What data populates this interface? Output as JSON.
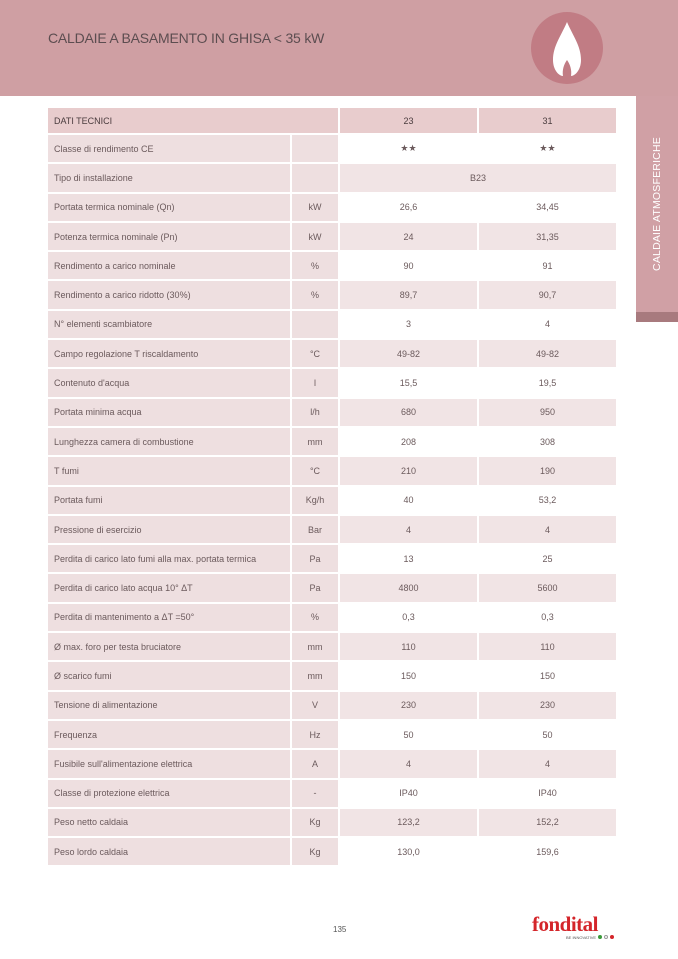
{
  "header": {
    "title": "CALDAIE A BASAMENTO IN GHISA < 35 kW",
    "icon": "flame-icon"
  },
  "sidetab": {
    "label": "CALDAIE ATMOSFERICHE"
  },
  "table": {
    "header": {
      "label": "DATI TECNICI",
      "col1": "23",
      "col2": "31"
    },
    "rows": [
      {
        "label": "Classe di rendimento CE",
        "unit": "",
        "v1": "★★",
        "v2": "★★"
      },
      {
        "label": "Tipo di installazione",
        "unit": "",
        "merged": "B23"
      },
      {
        "label": "Portata termica nominale (Qn)",
        "unit": "kW",
        "v1": "26,6",
        "v2": "34,45"
      },
      {
        "label": "Potenza termica nominale (Pn)",
        "unit": "kW",
        "v1": "24",
        "v2": "31,35"
      },
      {
        "label": "Rendimento a carico nominale",
        "unit": "%",
        "v1": "90",
        "v2": "91"
      },
      {
        "label": "Rendimento a carico ridotto (30%)",
        "unit": "%",
        "v1": "89,7",
        "v2": "90,7"
      },
      {
        "label": "N° elementi scambiatore",
        "unit": "",
        "v1": "3",
        "v2": "4"
      },
      {
        "label": "Campo regolazione T riscaldamento",
        "unit": "°C",
        "v1": "49-82",
        "v2": "49-82"
      },
      {
        "label": "Contenuto d'acqua",
        "unit": "l",
        "v1": "15,5",
        "v2": "19,5"
      },
      {
        "label": "Portata minima acqua",
        "unit": "l/h",
        "v1": "680",
        "v2": "950"
      },
      {
        "label": "Lunghezza camera di combustione",
        "unit": "mm",
        "v1": "208",
        "v2": "308"
      },
      {
        "label": "T fumi",
        "unit": "°C",
        "v1": "210",
        "v2": "190"
      },
      {
        "label": "Portata fumi",
        "unit": "Kg/h",
        "v1": "40",
        "v2": "53,2"
      },
      {
        "label": "Pressione di esercizio",
        "unit": "Bar",
        "v1": "4",
        "v2": "4"
      },
      {
        "label": "Perdita di carico lato fumi alla max. portata termica",
        "unit": "Pa",
        "v1": "13",
        "v2": "25"
      },
      {
        "label": "Perdita di carico lato acqua 10° ΔT",
        "unit": "Pa",
        "v1": "4800",
        "v2": "5600"
      },
      {
        "label": "Perdita di mantenimento a ΔT =50°",
        "unit": "%",
        "v1": "0,3",
        "v2": "0,3"
      },
      {
        "label": "Ø max. foro per testa bruciatore",
        "unit": "mm",
        "v1": "110",
        "v2": "110"
      },
      {
        "label": "Ø scarico fumi",
        "unit": "mm",
        "v1": "150",
        "v2": "150"
      },
      {
        "label": "Tensione di alimentazione",
        "unit": "V",
        "v1": "230",
        "v2": "230"
      },
      {
        "label": "Frequenza",
        "unit": "Hz",
        "v1": "50",
        "v2": "50"
      },
      {
        "label": "Fusibile sull'alimentazione elettrica",
        "unit": "A",
        "v1": "4",
        "v2": "4"
      },
      {
        "label": "Classe di protezione elettrica",
        "unit": "-",
        "v1": "IP40",
        "v2": "IP40"
      },
      {
        "label": "Peso netto caldaia",
        "unit": "Kg",
        "v1": "123,2",
        "v2": "152,2"
      },
      {
        "label": "Peso lordo caldaia",
        "unit": "Kg",
        "v1": "130,0",
        "v2": "159,6"
      }
    ]
  },
  "footer": {
    "page": "135",
    "logo": "fondital",
    "tagline": "BE INNOVATIVE"
  },
  "colors": {
    "header": "#cf9fa3",
    "accent": "#c17c84",
    "brand": "#d4252a"
  }
}
